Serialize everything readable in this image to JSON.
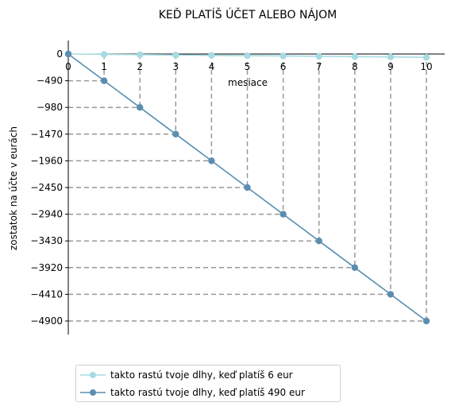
{
  "chart_data": {
    "type": "line",
    "title": "KEĎ PLATÍŠ ÚČET ALEBO NÁJOM",
    "xlabel": "mesiace",
    "ylabel": "zostatok na účte v eurách",
    "x": [
      0,
      1,
      2,
      3,
      4,
      5,
      6,
      7,
      8,
      9,
      10
    ],
    "xlim": [
      -0.3,
      10.5
    ],
    "ylim": [
      -5150,
      250
    ],
    "xticks": [
      "0",
      "1",
      "2",
      "3",
      "4",
      "5",
      "6",
      "7",
      "8",
      "9",
      "10"
    ],
    "yticks": [
      0,
      -490,
      -980,
      -1470,
      -1960,
      -2450,
      -2940,
      -3430,
      -3920,
      -4410,
      -4900
    ],
    "ytick_labels": [
      "0",
      "−490",
      "−980",
      "−1470",
      "−1960",
      "−2450",
      "−2940",
      "−3430",
      "−3920",
      "−4410",
      "−4900"
    ],
    "grid": false,
    "legend_position": "bottom-left, below plot",
    "series": [
      {
        "name": "takto rastú tvoje dlhy, keď platíš 6 eur",
        "color": "#a6dbe2",
        "values": [
          0,
          -6,
          -12,
          -18,
          -24,
          -30,
          -36,
          -42,
          -48,
          -54,
          -60
        ]
      },
      {
        "name": "takto rastú tvoje dlhy, keď platíš 490 eur",
        "color": "#5b8db0",
        "values": [
          0,
          -490,
          -980,
          -1470,
          -1960,
          -2450,
          -2940,
          -3430,
          -3920,
          -4410,
          -4900
        ]
      }
    ],
    "guide_lines": {
      "style": "dashed",
      "color": "#999999",
      "for_series": 1
    }
  }
}
